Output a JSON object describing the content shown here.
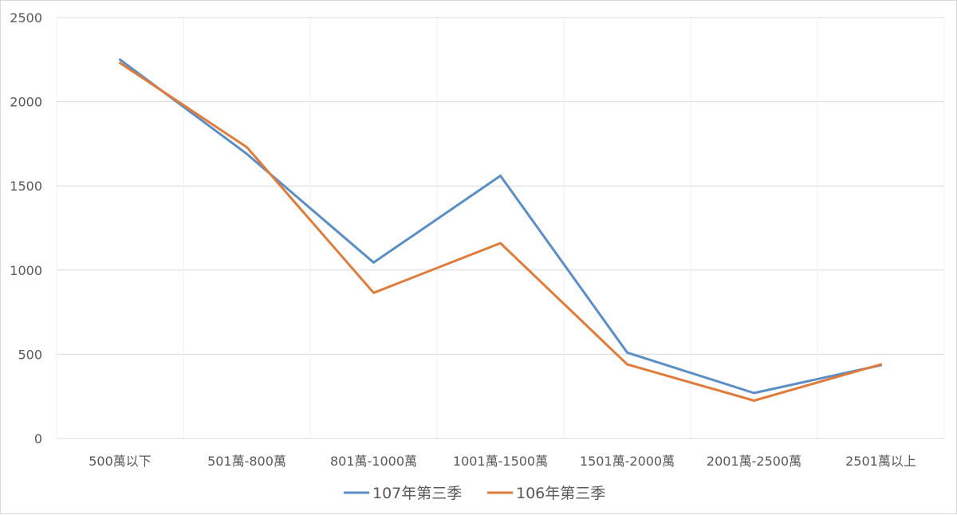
{
  "chart_data": {
    "type": "line",
    "categories": [
      "500萬以下",
      "501萬-800萬",
      "801萬-1000萬",
      "1001萬-1500萬",
      "1501萬-2000萬",
      "2001萬-2500萬",
      "2501萬以上"
    ],
    "series": [
      {
        "name": "107年第三季",
        "color": "#5b8ec6",
        "values": [
          2250,
          1690,
          1045,
          1560,
          510,
          270,
          435
        ]
      },
      {
        "name": "106年第三季",
        "color": "#e07b39",
        "values": [
          2230,
          1730,
          865,
          1160,
          440,
          225,
          440
        ]
      }
    ],
    "ylim": [
      0,
      2500
    ],
    "yticks": [
      0,
      500,
      1000,
      1500,
      2000,
      2500
    ],
    "grid": true,
    "legend": "bottom"
  }
}
